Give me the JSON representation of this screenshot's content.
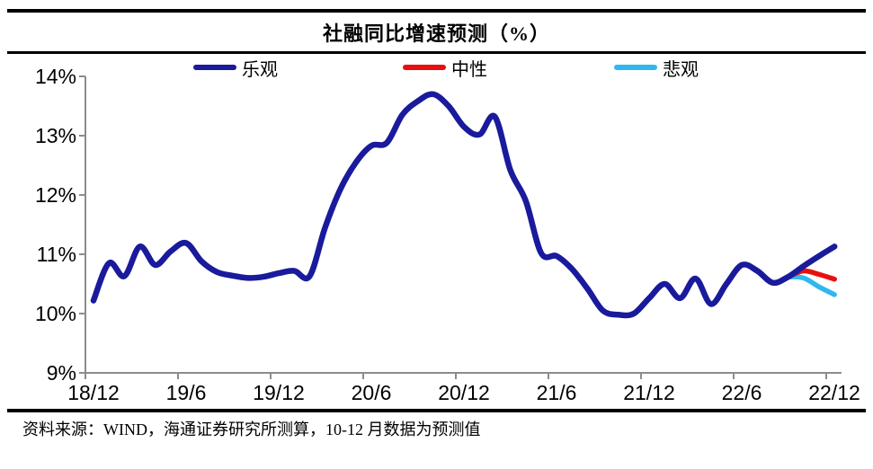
{
  "title": "社融同比增速预测（%）",
  "legend": [
    {
      "label": "乐观",
      "color": "#1A1A9C"
    },
    {
      "label": "中性",
      "color": "#E8100F"
    },
    {
      "label": "悲观",
      "color": "#2FB8F0"
    }
  ],
  "footer": {
    "source_note": "资料来源：WIND，海通证券研究所测算，10-12 月数据为预测值"
  },
  "chart_data": {
    "type": "line",
    "title": "社融同比增速预测（%）",
    "ylabel": "",
    "xlabel": "",
    "ylim": [
      9,
      14
    ],
    "y_tick_labels": [
      "14%",
      "13%",
      "12%",
      "11%",
      "10%",
      "9%"
    ],
    "y_tick_values": [
      14,
      13,
      12,
      11,
      10,
      9
    ],
    "x_tick_labels": [
      "18/12",
      "19/6",
      "19/12",
      "20/6",
      "20/12",
      "21/6",
      "21/12",
      "22/6",
      "22/12"
    ],
    "grid": false,
    "legend_position": "top",
    "axis_color": "#8C8C8C",
    "months": [
      "18/12",
      "19/1",
      "19/2",
      "19/3",
      "19/4",
      "19/5",
      "19/6",
      "19/7",
      "19/8",
      "19/9",
      "19/10",
      "19/11",
      "19/12",
      "20/1",
      "20/2",
      "20/3",
      "20/4",
      "20/5",
      "20/6",
      "20/7",
      "20/8",
      "20/9",
      "20/10",
      "20/11",
      "20/12",
      "21/1",
      "21/2",
      "21/3",
      "21/4",
      "21/5",
      "21/6",
      "21/7",
      "21/8",
      "21/9",
      "21/10",
      "21/11",
      "21/12",
      "22/1",
      "22/2",
      "22/3",
      "22/4",
      "22/5",
      "22/6",
      "22/7",
      "22/8",
      "22/9",
      "22/10",
      "22/11",
      "22/12"
    ],
    "forecast_note": "10-12 月数据为预测值",
    "series": [
      {
        "name": "乐观",
        "color": "#1A1A9C",
        "width": 6.5,
        "start_index": 0,
        "values": [
          10.22,
          10.85,
          10.63,
          11.13,
          10.82,
          11.05,
          11.19,
          10.88,
          10.7,
          10.64,
          10.6,
          10.62,
          10.68,
          10.72,
          10.63,
          11.45,
          12.1,
          12.55,
          12.83,
          12.88,
          13.35,
          13.58,
          13.7,
          13.5,
          13.15,
          13.02,
          13.32,
          12.42,
          11.9,
          11.02,
          10.97,
          10.75,
          10.42,
          10.05,
          9.98,
          10.0,
          10.26,
          10.5,
          10.26,
          10.59,
          10.16,
          10.5,
          10.82,
          10.72,
          10.52,
          10.62,
          10.8,
          10.97,
          11.13
        ]
      },
      {
        "name": "中性",
        "color": "#E8100F",
        "width": 5.5,
        "start_index": 45,
        "values": [
          10.62,
          10.72,
          10.66,
          10.58
        ]
      },
      {
        "name": "悲观",
        "color": "#2FB8F0",
        "width": 5.5,
        "start_index": 45,
        "values": [
          10.62,
          10.6,
          10.45,
          10.32
        ]
      }
    ]
  }
}
